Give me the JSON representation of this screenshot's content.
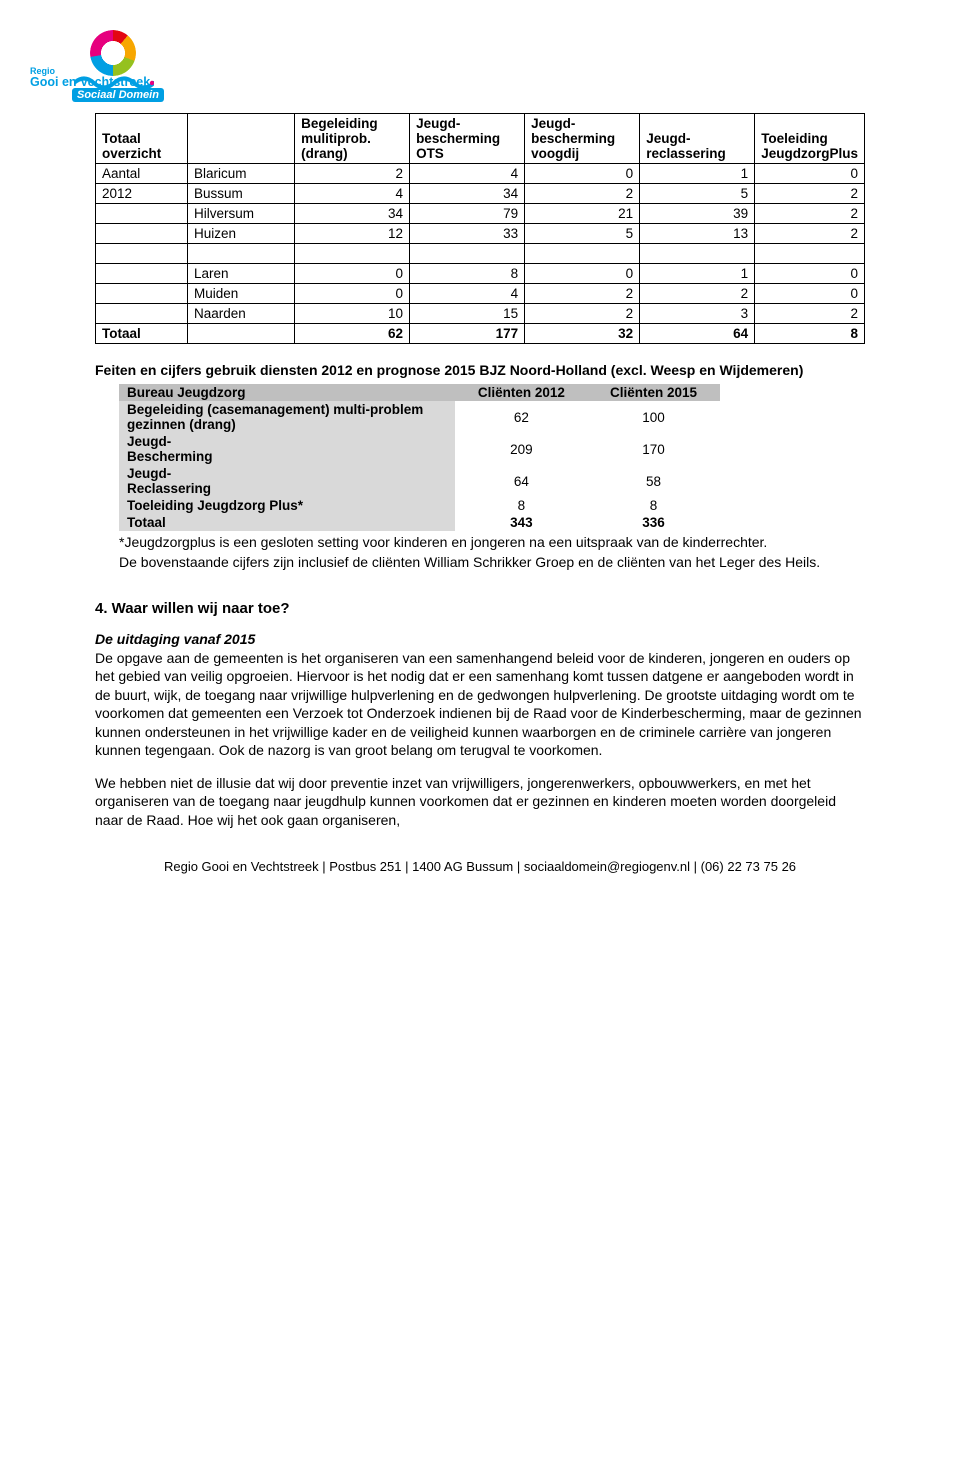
{
  "logo": {
    "region_prefix": "Regio",
    "region_main": "Gooi en Vechtstreek",
    "sub": "Sociaal Domein",
    "ring_colors": [
      "#e30613",
      "#f7a600",
      "#95c11f",
      "#009fe3",
      "#e6007e"
    ],
    "wave_color": "#009fe3"
  },
  "table1": {
    "headers": [
      "Totaal overzicht",
      "",
      "Begeleiding mulitiprob. (drang)",
      "Jeugd-bescherming OTS",
      "Jeugd-bescherming voogdij",
      "Jeugd-reclassering",
      "Toeleiding JeugdzorgPlus"
    ],
    "col0_a": "Aantal",
    "col0_b": "2012",
    "rows_top": [
      {
        "muni": "Blaricum",
        "v": [
          2,
          4,
          0,
          1,
          0
        ]
      },
      {
        "muni": "Bussum",
        "v": [
          4,
          34,
          2,
          5,
          2
        ]
      },
      {
        "muni": "Hilversum",
        "v": [
          34,
          79,
          21,
          39,
          2
        ]
      },
      {
        "muni": "Huizen",
        "v": [
          12,
          33,
          5,
          13,
          2
        ]
      }
    ],
    "rows_bottom": [
      {
        "muni": "Laren",
        "v": [
          0,
          8,
          0,
          1,
          0
        ]
      },
      {
        "muni": "Muiden",
        "v": [
          0,
          4,
          2,
          2,
          0
        ]
      },
      {
        "muni": "Naarden",
        "v": [
          10,
          15,
          2,
          3,
          2
        ]
      }
    ],
    "total_label": "Totaal",
    "total_v": [
      62,
      177,
      32,
      64,
      8
    ]
  },
  "section1_title": "Feiten en cijfers gebruik diensten 2012 en prognose 2015 BJZ Noord-Holland (excl. Weesp en Wijdemeren)",
  "table2": {
    "headers": [
      "Bureau Jeugdzorg",
      "Cliënten 2012",
      "Cliënten 2015"
    ],
    "rows": [
      {
        "label": "Begeleiding (casemanagement) multi-problem gezinnen (drang)",
        "a": 62,
        "b": 100
      },
      {
        "label": "Jeugd-\nBescherming",
        "a": 209,
        "b": 170
      },
      {
        "label": "Jeugd-\nReclassering",
        "a": 64,
        "b": 58
      },
      {
        "label": "Toeleiding Jeugdzorg Plus*",
        "a": 8,
        "b": 8
      }
    ],
    "total": {
      "label": "Totaal",
      "a": 343,
      "b": 336
    }
  },
  "note1": "*Jeugdzorgplus is een gesloten setting voor kinderen en jongeren na een uitspraak van de kinderrechter.",
  "note2": "De bovenstaande cijfers zijn inclusief de cliënten William Schrikker Groep en de cliënten van het Leger des Heils.",
  "heading4": "4. Waar willen wij naar toe?",
  "subhead": "De uitdaging vanaf 2015",
  "para1": "De opgave aan de gemeenten is het organiseren van een samenhangend beleid voor de kinderen, jongeren en ouders op het gebied van veilig opgroeien. Hiervoor is het nodig dat er een samenhang komt tussen datgene er aangeboden wordt in de buurt, wijk, de toegang naar vrijwillige hulpverlening en de gedwongen hulpverlening. De grootste uitdaging wordt om te voorkomen dat gemeenten een Verzoek tot Onderzoek indienen bij de Raad voor de Kinderbescherming, maar de gezinnen kunnen ondersteunen in het vrijwillige kader en de veiligheid kunnen waarborgen en de criminele carrière van jongeren kunnen tegengaan. Ook de nazorg is van groot belang om terugval te voorkomen.",
  "para2": "We hebben niet de illusie dat wij door preventie inzet van vrijwilligers, jongerenwerkers, opbouwwerkers, en met het organiseren van de toegang naar jeugdhulp kunnen voorkomen dat er gezinnen en kinderen moeten worden doorgeleid naar de Raad. Hoe wij het ook gaan organiseren,",
  "footer": "Regio Gooi en Vechtstreek | Postbus 251 | 1400 AG Bussum | sociaaldomein@regiogenv.nl | (06) 22 73 75 26"
}
